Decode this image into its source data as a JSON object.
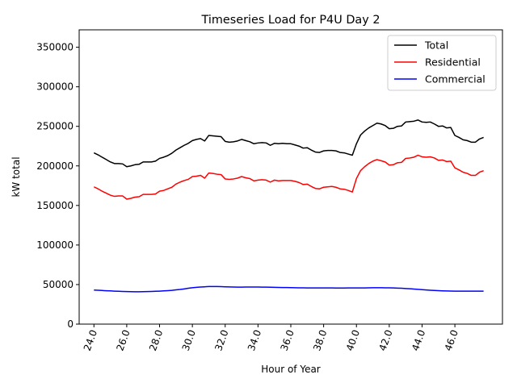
{
  "chart_data": {
    "type": "line",
    "title": "Timeseries Load for P4U   Day 2",
    "xlabel": "Hour of Year",
    "ylabel": "kW total",
    "xlim": [
      23.1,
      48.9
    ],
    "ylim": [
      0,
      372000
    ],
    "xticks": [
      24,
      26,
      28,
      30,
      32,
      34,
      36,
      38,
      40,
      42,
      44,
      46
    ],
    "xtick_labels": [
      "24.0",
      "26.0",
      "28.0",
      "30.0",
      "32.0",
      "34.0",
      "36.0",
      "38.0",
      "40.0",
      "42.0",
      "44.0",
      "46.0"
    ],
    "yticks": [
      0,
      50000,
      100000,
      150000,
      200000,
      250000,
      300000,
      350000
    ],
    "ytick_labels": [
      "0",
      "50000",
      "100000",
      "150000",
      "200000",
      "250000",
      "300000",
      "350000"
    ],
    "legend_position": "upper right",
    "x": [
      24.0,
      24.25,
      24.5,
      24.75,
      25.0,
      25.25,
      25.5,
      25.75,
      26.0,
      26.25,
      26.5,
      26.75,
      27.0,
      27.25,
      27.5,
      27.75,
      28.0,
      28.25,
      28.5,
      28.75,
      29.0,
      29.25,
      29.5,
      29.75,
      30.0,
      30.25,
      30.5,
      30.75,
      31.0,
      31.25,
      31.5,
      31.75,
      32.0,
      32.25,
      32.5,
      32.75,
      33.0,
      33.25,
      33.5,
      33.75,
      34.0,
      34.25,
      34.5,
      34.75,
      35.0,
      35.25,
      35.5,
      35.75,
      36.0,
      36.25,
      36.5,
      36.75,
      37.0,
      37.25,
      37.5,
      37.75,
      38.0,
      38.25,
      38.5,
      38.75,
      39.0,
      39.25,
      39.5,
      39.75,
      40.0,
      40.25,
      40.5,
      40.75,
      41.0,
      41.25,
      41.5,
      41.75,
      42.0,
      42.25,
      42.5,
      42.75,
      43.0,
      43.25,
      43.5,
      43.75,
      44.0,
      44.25,
      44.5,
      44.75,
      45.0,
      45.25,
      45.5,
      45.75,
      46.0,
      46.25,
      46.5,
      46.75,
      47.0,
      47.25,
      47.5,
      47.75
    ],
    "series": [
      {
        "name": "Total",
        "color": "#000000",
        "values": [
          216500,
          214000,
          211000,
          208000,
          205000,
          203000,
          203000,
          202500,
          199000,
          200000,
          201500,
          202000,
          205000,
          205000,
          205000,
          206000,
          209500,
          211000,
          213000,
          216000,
          220000,
          223000,
          226000,
          228500,
          232000,
          233500,
          234500,
          231500,
          238500,
          238000,
          237500,
          237000,
          231000,
          230000,
          230500,
          231500,
          233500,
          232000,
          230500,
          228000,
          229000,
          229500,
          229000,
          226000,
          228500,
          228000,
          228500,
          228000,
          228000,
          226500,
          225000,
          222500,
          223000,
          220000,
          217500,
          217000,
          219000,
          219500,
          219500,
          219000,
          217000,
          216500,
          215000,
          213500,
          228000,
          239000,
          244000,
          248000,
          251000,
          254000,
          253000,
          251000,
          247000,
          247500,
          250000,
          250500,
          255500,
          256000,
          256500,
          258000,
          255500,
          255000,
          255500,
          253000,
          250000,
          250500,
          248000,
          248500,
          238500,
          236000,
          233000,
          232000,
          230000,
          230000,
          234000,
          236000
        ]
      },
      {
        "name": "Residential",
        "color": "#ff0000",
        "values": [
          173500,
          171000,
          168000,
          165500,
          163000,
          161500,
          162000,
          162000,
          158000,
          159000,
          160500,
          161000,
          164000,
          164000,
          164000,
          164500,
          168000,
          169000,
          171000,
          173000,
          177000,
          179500,
          181500,
          183000,
          186500,
          187000,
          188000,
          184500,
          191000,
          190500,
          189500,
          189000,
          183500,
          183000,
          183500,
          184500,
          186500,
          185000,
          184000,
          181000,
          182000,
          182500,
          182000,
          179500,
          182000,
          181000,
          181500,
          181500,
          181500,
          180500,
          179000,
          176500,
          177000,
          174000,
          171500,
          171000,
          173000,
          173500,
          174000,
          173000,
          171000,
          170500,
          169000,
          167000,
          184000,
          194000,
          199000,
          203000,
          206000,
          208000,
          206500,
          205000,
          201000,
          201500,
          204000,
          204500,
          209500,
          210000,
          211000,
          213500,
          211500,
          211000,
          211500,
          210000,
          207000,
          207500,
          205500,
          206000,
          197500,
          195000,
          192000,
          190500,
          188000,
          188000,
          192000,
          194000
        ]
      },
      {
        "name": "Commercial",
        "color": "#0000ff",
        "values": [
          43000,
          42800,
          42500,
          42200,
          42000,
          41700,
          41500,
          41300,
          41100,
          41000,
          40900,
          40900,
          41000,
          41100,
          41300,
          41500,
          41700,
          42000,
          42300,
          42700,
          43300,
          43800,
          44500,
          45300,
          46000,
          46500,
          46900,
          47200,
          47500,
          47500,
          47500,
          47400,
          47200,
          47000,
          46900,
          46800,
          46800,
          46900,
          46900,
          46900,
          46900,
          46800,
          46700,
          46600,
          46500,
          46400,
          46300,
          46200,
          46100,
          46000,
          45900,
          45800,
          45700,
          45700,
          45700,
          45700,
          45700,
          45700,
          45700,
          45600,
          45600,
          45600,
          45700,
          45700,
          45700,
          45700,
          45700,
          45900,
          46000,
          46000,
          46000,
          45900,
          45800,
          45700,
          45500,
          45300,
          45000,
          44700,
          44400,
          44000,
          43600,
          43200,
          42800,
          42500,
          42300,
          42100,
          41900,
          41800,
          41700,
          41600,
          41600,
          41600,
          41600,
          41600,
          41700,
          41700
        ]
      }
    ]
  }
}
